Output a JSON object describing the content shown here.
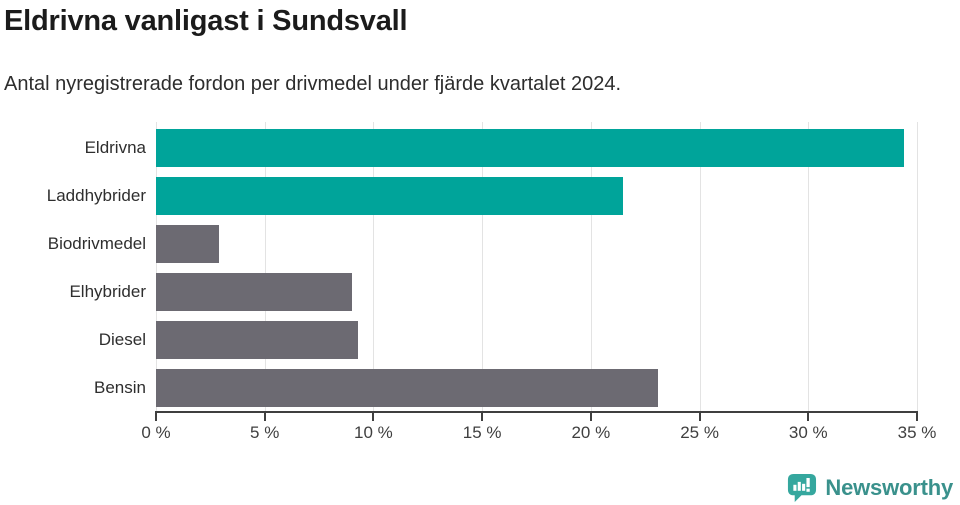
{
  "title": "Eldrivna vanligast i Sundsvall",
  "subtitle": "Antal nyregistrerade fordon per drivmedel under fjärde kvartalet 2024.",
  "chart_data": {
    "type": "bar",
    "orientation": "horizontal",
    "title": "Eldrivna vanligast i Sundsvall",
    "subtitle": "Antal nyregistrerade fordon per drivmedel under fjärde kvartalet 2024.",
    "categories": [
      "Eldrivna",
      "Laddhybrider",
      "Biodrivmedel",
      "Elhybrider",
      "Diesel",
      "Bensin"
    ],
    "values": [
      34.4,
      21.5,
      2.9,
      9.0,
      9.3,
      23.1
    ],
    "unit": "%",
    "xlim": [
      0,
      35
    ],
    "xticks": [
      0,
      5,
      10,
      15,
      20,
      25,
      30,
      35
    ],
    "xtick_labels": [
      "0 %",
      "5 %",
      "10 %",
      "15 %",
      "20 %",
      "25 %",
      "30 %",
      "35 %"
    ],
    "grid": true,
    "legend": false,
    "bar_colors": [
      "#00a49a",
      "#00a49a",
      "#6c6a72",
      "#6c6a72",
      "#6c6a72",
      "#6c6a72"
    ]
  },
  "colors": {
    "highlight": "#00a49a",
    "base": "#6c6a72",
    "axis": "#3f3f3f",
    "grid": "#e3e3e3",
    "title_text": "#1b1b1b",
    "brand": "#3a918c",
    "brand_icon": "#35a79e"
  },
  "footer": {
    "brand": "Newsworthy"
  }
}
